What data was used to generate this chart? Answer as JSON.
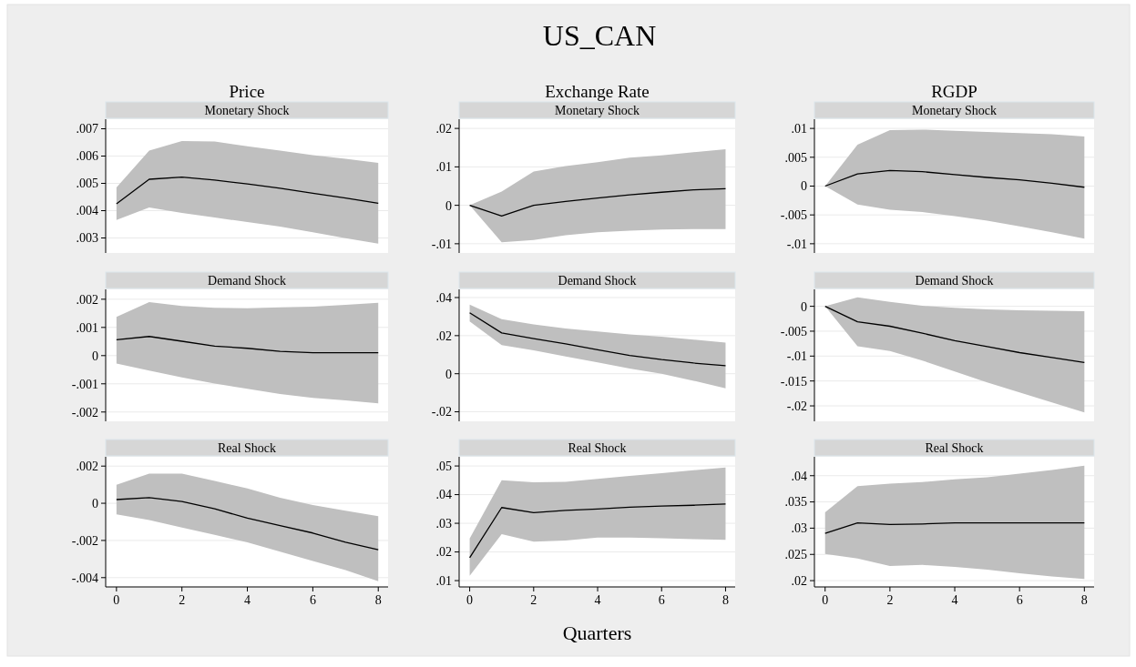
{
  "chart_data": [
    {
      "type": "line",
      "title": "Price",
      "subtitle": "Monetary Shock",
      "annotations": [
        "US_CAN"
      ],
      "x": [
        0,
        1,
        2,
        3,
        4,
        5,
        6,
        7,
        8
      ],
      "xlim": [
        -0.33,
        8.3
      ],
      "ylim": [
        0.00245,
        0.00735
      ],
      "yticks": [
        {
          "value": 0.003,
          "label": ".003"
        },
        {
          "value": 0.004,
          "label": ".004"
        },
        {
          "value": 0.005,
          "label": ".005"
        },
        {
          "value": 0.006,
          "label": ".006"
        },
        {
          "value": 0.007,
          "label": ".007"
        }
      ],
      "grid": "y",
      "tick_labels": "y",
      "series": [
        {
          "color": "#000000",
          "values": [
            0.00425,
            0.00515,
            0.00523,
            0.00512,
            0.00498,
            0.00482,
            0.00464,
            0.00446,
            0.00427
          ],
          "lower": [
            0.00366,
            0.00412,
            0.00392,
            0.00375,
            0.00358,
            0.00342,
            0.00321,
            0.00299,
            0.00279
          ],
          "upper": [
            0.00485,
            0.0062,
            0.00655,
            0.00653,
            0.00636,
            0.0062,
            0.00603,
            0.0059,
            0.00575
          ]
        }
      ]
    },
    {
      "type": "line",
      "title": "Exchange Rate",
      "subtitle": "Monetary Shock",
      "x": [
        0,
        1,
        2,
        3,
        4,
        5,
        6,
        7,
        8
      ],
      "xlim": [
        -0.33,
        8.3
      ],
      "ylim": [
        -0.0124,
        0.0224
      ],
      "yticks": [
        {
          "value": -0.01,
          "label": "-.01"
        },
        {
          "value": 0,
          "label": "0"
        },
        {
          "value": 0.01,
          "label": ".01"
        },
        {
          "value": 0.02,
          "label": ".02"
        }
      ],
      "grid": "y",
      "tick_labels": "y",
      "series": [
        {
          "color": "#000000",
          "values": [
            0,
            -0.0028,
            0,
            0.001,
            0.0019,
            0.0027,
            0.0034,
            0.004,
            0.0043
          ],
          "lower": [
            0,
            -0.0096,
            -0.009,
            -0.0078,
            -0.007,
            -0.0066,
            -0.0063,
            -0.0062,
            -0.0062
          ],
          "upper": [
            0,
            0.0036,
            0.0088,
            0.0102,
            0.0112,
            0.0124,
            0.013,
            0.0138,
            0.0146
          ]
        }
      ]
    },
    {
      "type": "line",
      "title": "RGDP",
      "subtitle": "Monetary Shock",
      "x": [
        0,
        1,
        2,
        3,
        4,
        5,
        6,
        7,
        8
      ],
      "xlim": [
        -0.33,
        8.3
      ],
      "ylim": [
        -0.0116,
        0.0116
      ],
      "yticks": [
        {
          "value": -0.01,
          "label": "-.01"
        },
        {
          "value": -0.005,
          "label": "-.005"
        },
        {
          "value": 0,
          "label": "0"
        },
        {
          "value": 0.005,
          "label": ".005"
        },
        {
          "value": 0.01,
          "label": ".01"
        }
      ],
      "grid": "y",
      "tick_labels": "y",
      "series": [
        {
          "color": "#000000",
          "values": [
            0,
            0.0021,
            0.0027,
            0.0025,
            0.002,
            0.0015,
            0.0011,
            0.0005,
            -0.0002
          ],
          "lower": [
            0,
            -0.0032,
            -0.0041,
            -0.0045,
            -0.0052,
            -0.006,
            -0.007,
            -0.008,
            -0.0091
          ],
          "upper": [
            0,
            0.0072,
            0.0097,
            0.0098,
            0.0096,
            0.0094,
            0.0092,
            0.009,
            0.0086
          ]
        }
      ]
    },
    {
      "type": "line",
      "subtitle": "Demand Shock",
      "x": [
        0,
        1,
        2,
        3,
        4,
        5,
        6,
        7,
        8
      ],
      "xlim": [
        -0.33,
        8.3
      ],
      "ylim": [
        -0.00233,
        0.00235
      ],
      "yticks": [
        {
          "value": -0.002,
          "label": "-.002"
        },
        {
          "value": -0.001,
          "label": "-.001"
        },
        {
          "value": 0,
          "label": "0"
        },
        {
          "value": 0.001,
          "label": ".001"
        },
        {
          "value": 0.002,
          "label": ".002"
        }
      ],
      "grid": "y",
      "tick_labels": "y",
      "series": [
        {
          "color": "#000000",
          "values": [
            0.00056,
            0.00068,
            0.00051,
            0.00034,
            0.00026,
            0.00015,
            0.0001,
            0.0001,
            0.0001
          ],
          "lower": [
            -0.00028,
            -0.00053,
            -0.00077,
            -0.00099,
            -0.00118,
            -0.00136,
            -0.0015,
            -0.00159,
            -0.00169
          ],
          "upper": [
            0.00137,
            0.0019,
            0.00176,
            0.0017,
            0.00168,
            0.00171,
            0.00174,
            0.0018,
            0.00187
          ]
        }
      ]
    },
    {
      "type": "line",
      "subtitle": "Demand Shock",
      "x": [
        0,
        1,
        2,
        3,
        4,
        5,
        6,
        7,
        8
      ],
      "xlim": [
        -0.33,
        8.3
      ],
      "ylim": [
        -0.025,
        0.0443
      ],
      "yticks": [
        {
          "value": -0.02,
          "label": "-.02"
        },
        {
          "value": 0,
          "label": "0"
        },
        {
          "value": 0.02,
          "label": ".02"
        },
        {
          "value": 0.04,
          "label": ".04"
        }
      ],
      "grid": "y",
      "tick_labels": "y",
      "series": [
        {
          "color": "#000000",
          "values": [
            0.032,
            0.0214,
            0.0184,
            0.0157,
            0.0126,
            0.0096,
            0.0074,
            0.0056,
            0.0042
          ],
          "lower": [
            0.0275,
            0.015,
            0.0123,
            0.0091,
            0.0059,
            0.0027,
            0,
            -0.0037,
            -0.0077
          ],
          "upper": [
            0.0363,
            0.0286,
            0.0259,
            0.0238,
            0.0222,
            0.0206,
            0.0195,
            0.0179,
            0.0163
          ]
        }
      ]
    },
    {
      "type": "line",
      "subtitle": "Demand Shock",
      "x": [
        0,
        1,
        2,
        3,
        4,
        5,
        6,
        7,
        8
      ],
      "xlim": [
        -0.33,
        8.3
      ],
      "ylim": [
        -0.0231,
        0.0034
      ],
      "yticks": [
        {
          "value": -0.02,
          "label": "-.02"
        },
        {
          "value": -0.015,
          "label": "-.015"
        },
        {
          "value": -0.01,
          "label": "-.01"
        },
        {
          "value": -0.005,
          "label": "-.005"
        },
        {
          "value": 0,
          "label": "0"
        }
      ],
      "grid": "y",
      "tick_labels": "y",
      "series": [
        {
          "color": "#000000",
          "values": [
            0,
            -0.0031,
            -0.004,
            -0.0054,
            -0.0069,
            -0.0081,
            -0.0093,
            -0.0103,
            -0.0113
          ],
          "lower": [
            0,
            -0.008,
            -0.009,
            -0.0109,
            -0.0131,
            -0.0153,
            -0.0173,
            -0.0193,
            -0.0213
          ],
          "upper": [
            0,
            0.0018,
            0.0009,
            0.0001,
            -0.0003,
            -0.0006,
            -0.0008,
            -0.0009,
            -0.001
          ]
        }
      ]
    },
    {
      "type": "line",
      "subtitle": "Real Shock",
      "x": [
        0,
        1,
        2,
        3,
        4,
        5,
        6,
        7,
        8
      ],
      "xlim": [
        -0.33,
        8.3
      ],
      "xticks": [
        0,
        2,
        4,
        6,
        8
      ],
      "ylim": [
        -0.0045,
        0.0025
      ],
      "yticks": [
        {
          "value": -0.004,
          "label": "-.004"
        },
        {
          "value": -0.002,
          "label": "-.002"
        },
        {
          "value": 0,
          "label": "0"
        },
        {
          "value": 0.002,
          "label": ".002"
        }
      ],
      "grid": "y",
      "series": [
        {
          "color": "#000000",
          "values": [
            0.0002,
            0.0003,
            0.0001,
            -0.0003,
            -0.0008,
            -0.0012,
            -0.0016,
            -0.0021,
            -0.0025
          ],
          "lower": [
            -0.0006,
            -0.0009,
            -0.0013,
            -0.0017,
            -0.0021,
            -0.0026,
            -0.0031,
            -0.0036,
            -0.0042
          ],
          "upper": [
            0.001,
            0.0016,
            0.0016,
            0.0012,
            0.0008,
            0.0003,
            -0.0001,
            -0.0004,
            -0.0007
          ]
        }
      ]
    },
    {
      "type": "line",
      "subtitle": "Real Shock",
      "xlabel": "Quarters",
      "x": [
        0,
        1,
        2,
        3,
        4,
        5,
        6,
        7,
        8
      ],
      "xlim": [
        -0.33,
        8.3
      ],
      "xticks": [
        0,
        2,
        4,
        6,
        8
      ],
      "ylim": [
        0.0078,
        0.0532
      ],
      "yticks": [
        {
          "value": 0.01,
          "label": ".01"
        },
        {
          "value": 0.02,
          "label": ".02"
        },
        {
          "value": 0.03,
          "label": ".03"
        },
        {
          "value": 0.04,
          "label": ".04"
        },
        {
          "value": 0.05,
          "label": ".05"
        }
      ],
      "grid": "y",
      "series": [
        {
          "color": "#000000",
          "values": [
            0.018,
            0.0355,
            0.0337,
            0.0345,
            0.035,
            0.0356,
            0.036,
            0.0363,
            0.0367
          ],
          "lower": [
            0.0117,
            0.0262,
            0.0236,
            0.024,
            0.025,
            0.025,
            0.0248,
            0.0245,
            0.0242
          ],
          "upper": [
            0.0247,
            0.045,
            0.0443,
            0.0445,
            0.0455,
            0.0465,
            0.0475,
            0.0485,
            0.0495
          ]
        }
      ]
    },
    {
      "type": "line",
      "subtitle": "Real Shock",
      "x": [
        0,
        1,
        2,
        3,
        4,
        5,
        6,
        7,
        8
      ],
      "xlim": [
        -0.33,
        8.3
      ],
      "xticks": [
        0,
        2,
        4,
        6,
        8
      ],
      "ylim": [
        0.0188,
        0.0436
      ],
      "yticks": [
        {
          "value": 0.02,
          "label": ".02"
        },
        {
          "value": 0.025,
          "label": ".025"
        },
        {
          "value": 0.03,
          "label": ".03"
        },
        {
          "value": 0.035,
          "label": ".035"
        },
        {
          "value": 0.04,
          "label": ".04"
        }
      ],
      "grid": "y",
      "series": [
        {
          "color": "#000000",
          "values": [
            0.029,
            0.031,
            0.0307,
            0.0308,
            0.031,
            0.031,
            0.031,
            0.031,
            0.031
          ],
          "lower": [
            0.0251,
            0.0242,
            0.0228,
            0.023,
            0.0226,
            0.0221,
            0.0214,
            0.0208,
            0.0203
          ],
          "upper": [
            0.033,
            0.038,
            0.0385,
            0.0388,
            0.0393,
            0.0397,
            0.0404,
            0.0411,
            0.0419
          ]
        }
      ]
    }
  ]
}
